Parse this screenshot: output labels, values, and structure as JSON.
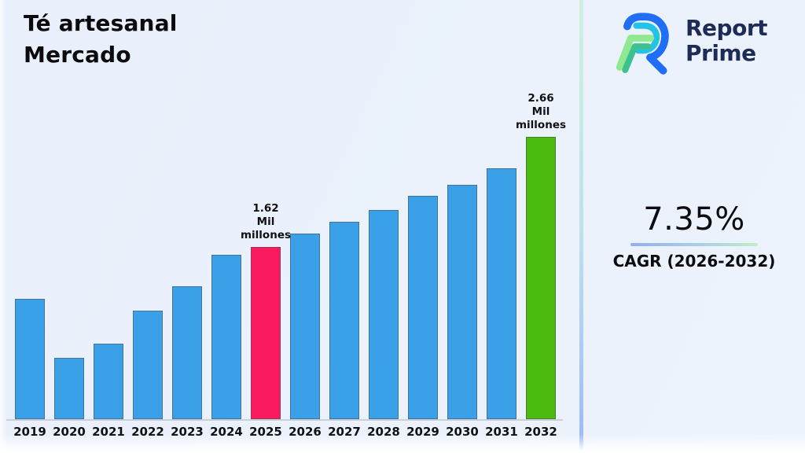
{
  "header": {
    "title_line1": "Té artesanal",
    "title_line2": "Mercado"
  },
  "logo": {
    "word_line1": "Report",
    "word_line2": "Prime",
    "navy": "#1e2b56",
    "blue": "#1f6ef5",
    "cyan": "#22c3e6",
    "green_light": "#8fe98f",
    "teal": "#3cc18f"
  },
  "stats": {
    "cagr_value": "7.35%",
    "cagr_label": "CAGR (2026-2032)"
  },
  "chart_data": {
    "type": "bar",
    "title": "Té artesanal Mercado",
    "xlabel": "",
    "ylabel": "",
    "unit": "Mil millones",
    "ylim": [
      0,
      3
    ],
    "grid": false,
    "legend": false,
    "categories": [
      "2019",
      "2020",
      "2021",
      "2022",
      "2023",
      "2024",
      "2025",
      "2026",
      "2027",
      "2028",
      "2029",
      "2030",
      "2031",
      "2032"
    ],
    "values": [
      1.13,
      0.58,
      0.71,
      1.02,
      1.25,
      1.55,
      1.62,
      1.75,
      1.86,
      1.97,
      2.1,
      2.21,
      2.36,
      2.66
    ],
    "bar_colors": [
      "#3aa0e8",
      "#3aa0e8",
      "#3aa0e8",
      "#3aa0e8",
      "#3aa0e8",
      "#3aa0e8",
      "#fa1a60",
      "#3aa0e8",
      "#3aa0e8",
      "#3aa0e8",
      "#3aa0e8",
      "#3aa0e8",
      "#3aa0e8",
      "#4bbb10"
    ],
    "highlight_colors": {
      "current_year": "#fa1a60",
      "final_year": "#4bbb10",
      "default": "#3aa0e8"
    },
    "annotations": [
      {
        "year": "2025",
        "lines": [
          "1.62",
          "Mil",
          "millones"
        ]
      },
      {
        "year": "2032",
        "lines": [
          "2.66",
          "Mil",
          "millones"
        ]
      }
    ]
  }
}
